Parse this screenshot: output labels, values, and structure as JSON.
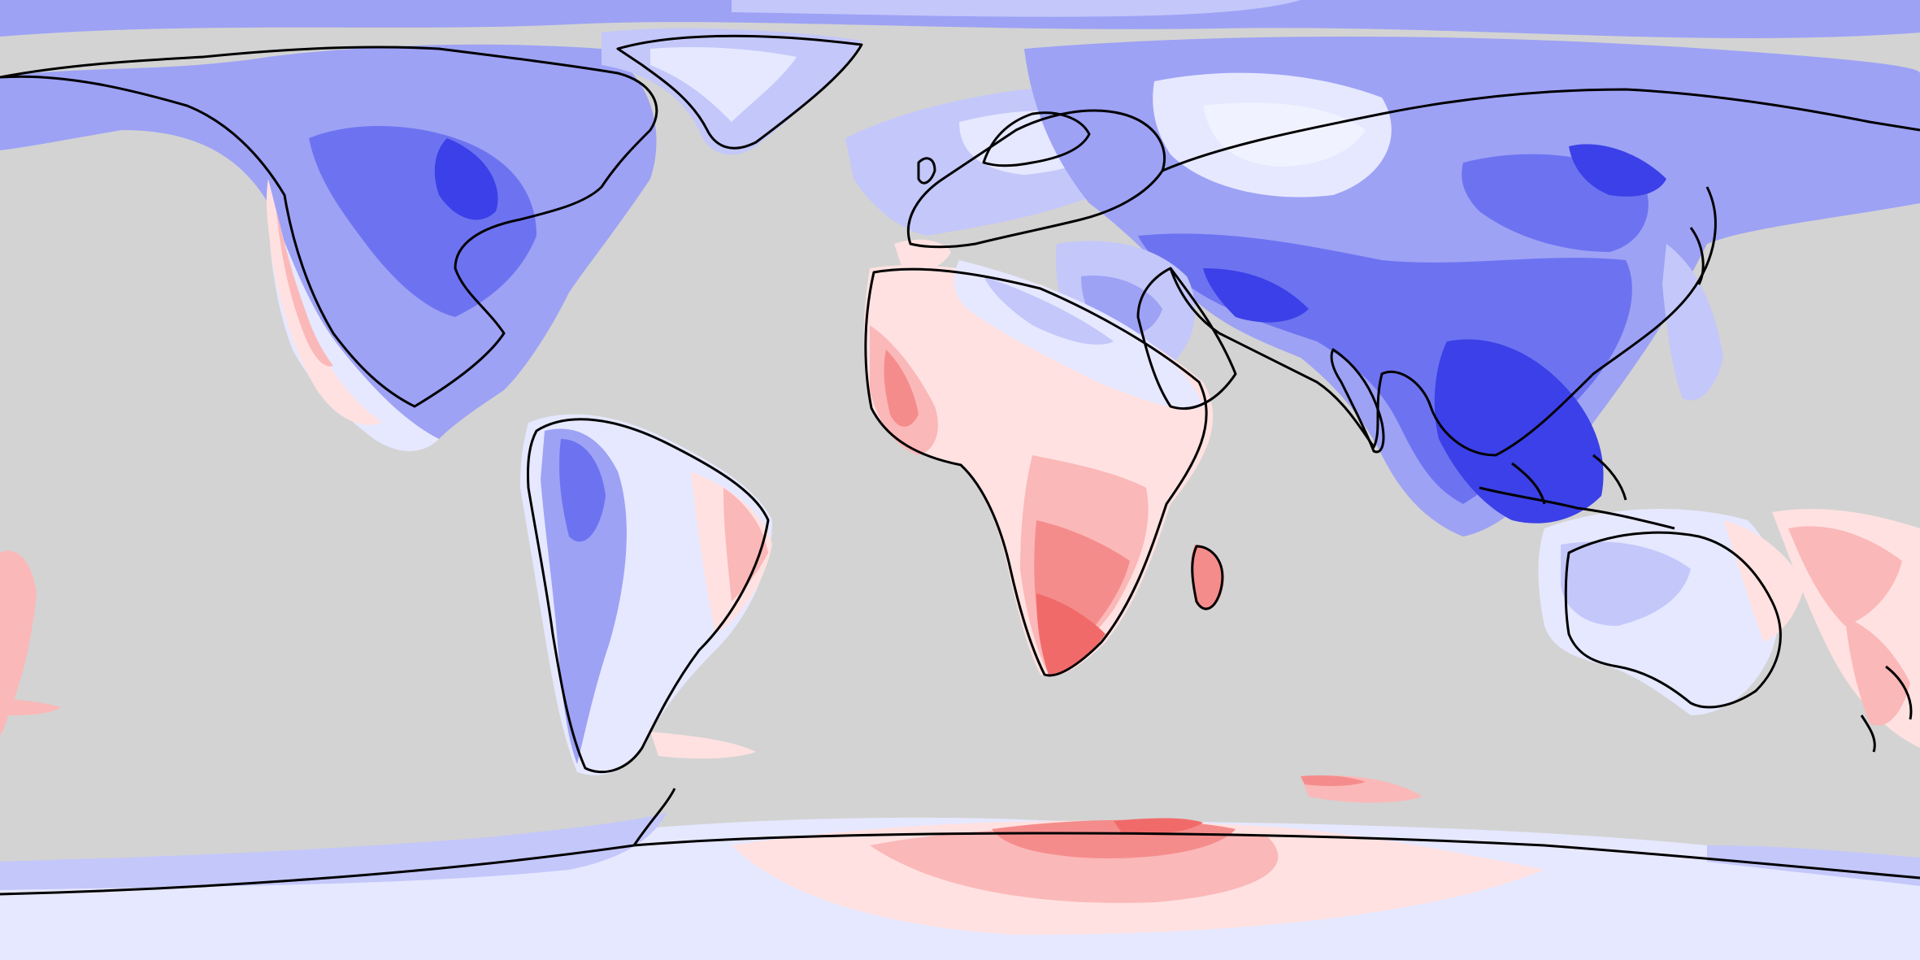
{
  "map": {
    "projection": "equirectangular",
    "colors": {
      "ocean": "#d3d3d3",
      "blue_1": "#e6e8ff",
      "blue_2": "#c4c7fa",
      "blue_3": "#9da2f5",
      "blue_4": "#6d73f0",
      "blue_5": "#3b40e8",
      "red_1": "#ffe1e1",
      "red_2": "#fbb8b8",
      "red_3": "#f58c8c",
      "red_4": "#f16a6a",
      "coastline": "#000000"
    }
  }
}
